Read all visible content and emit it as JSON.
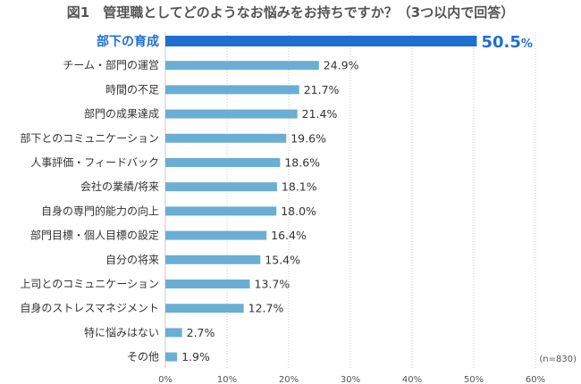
{
  "chart_data": {
    "type": "bar",
    "orientation": "horizontal",
    "title": "図1　管理職としてどのようなお悩みをお持ちですか？（3つ以内で回答）",
    "categories": [
      "部下の育成",
      "チーム・部門の運営",
      "時間の不足",
      "部門の成果達成",
      "部下とのコミュニケーション",
      "人事評価・フィードバック",
      "会社の業績/将来",
      "自身の専門的能力の向上",
      "部門目標・個人目標の設定",
      "自分の将来",
      "上司とのコミュニケーション",
      "自身のストレスマネジメント",
      "特に悩みはない",
      "その他"
    ],
    "values": [
      50.5,
      24.9,
      21.7,
      21.4,
      19.6,
      18.6,
      18.1,
      18.0,
      16.4,
      15.4,
      13.7,
      12.7,
      2.7,
      1.9
    ],
    "value_labels": [
      "50.5",
      "24.9%",
      "21.7%",
      "21.4%",
      "19.6%",
      "18.6%",
      "18.1%",
      "18.0%",
      "16.4%",
      "15.4%",
      "13.7%",
      "12.7%",
      "2.7%",
      "1.9%"
    ],
    "highlight_unit": "%",
    "highlight_index": 0,
    "xlim": [
      0,
      60
    ],
    "x_ticks": [
      "0%",
      "10%",
      "20%",
      "30%",
      "40%",
      "50%",
      "60%"
    ],
    "note": "(n=830)",
    "grid": true,
    "colors": {
      "highlight": "#1f6fd1",
      "bar": "#6aaed3",
      "grid": "#c8c8c8",
      "label_highlight": "#1f6fd1"
    }
  }
}
